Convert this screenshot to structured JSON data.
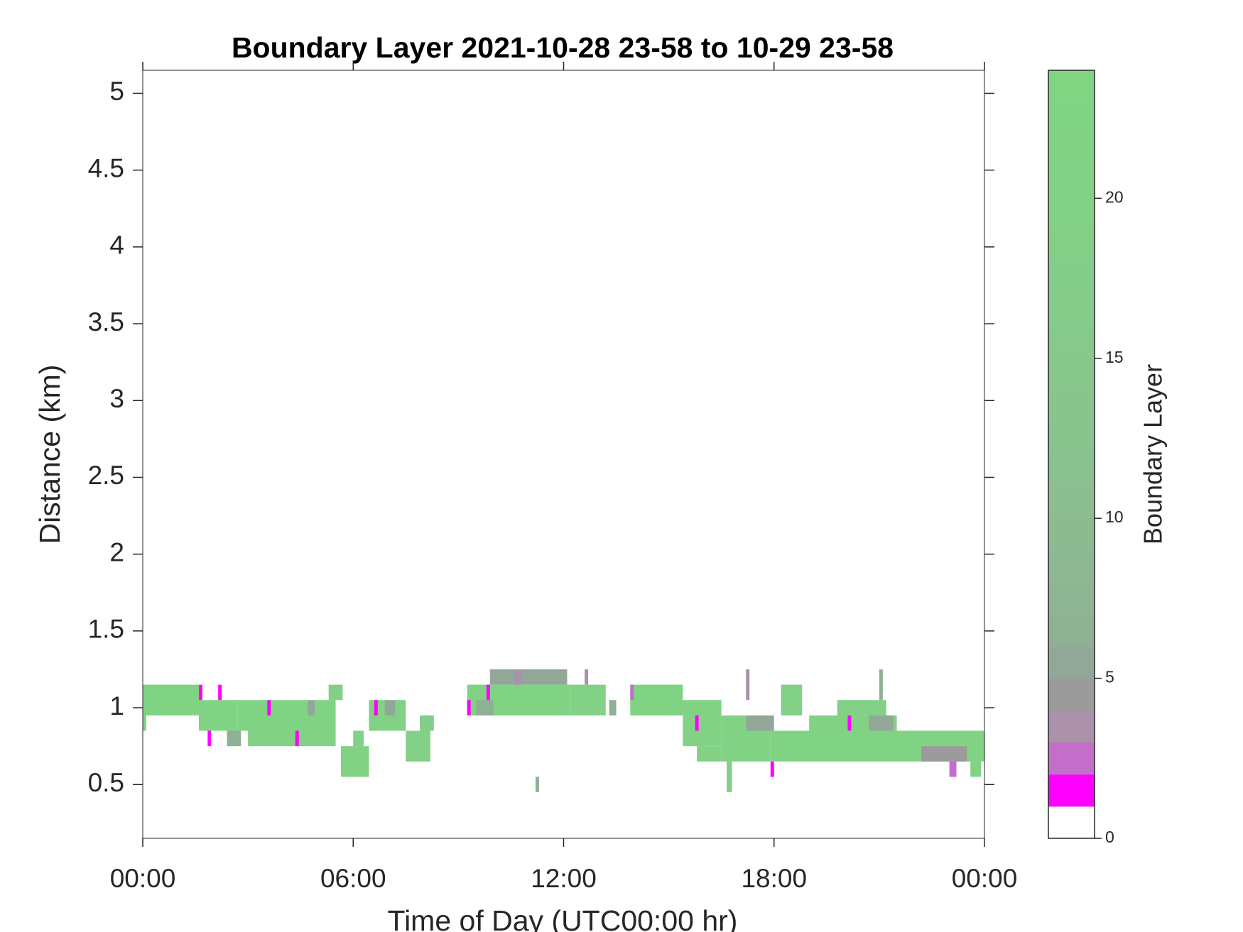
{
  "chart_data": {
    "type": "heatmap",
    "title": "Boundary Layer 2021-10-28 23-58 to 10-29 23-58",
    "x_label": "Time of Day (UTC00:00 hr)",
    "y_label": "Distance (km)",
    "xlim": [
      0,
      24
    ],
    "xticks": [
      {
        "value": 0,
        "label": "00:00"
      },
      {
        "value": 6,
        "label": "06:00"
      },
      {
        "value": 12,
        "label": "12:00"
      },
      {
        "value": 18,
        "label": "18:00"
      },
      {
        "value": 24,
        "label": "00:00"
      }
    ],
    "ylim": [
      0.15,
      5.15
    ],
    "yticks": [
      0.5,
      1,
      1.5,
      2,
      2.5,
      3,
      3.5,
      4,
      4.5,
      5
    ],
    "colorbar": {
      "label": "Boundary Layer",
      "lim": [
        0,
        24
      ],
      "ticks": [
        0,
        5,
        10,
        15,
        20
      ],
      "colors": [
        "#ffffff",
        "#ff00ff",
        "#c36fca",
        "#ab91a9",
        "#9a9b9a",
        "#93a799",
        "#8fb193",
        "#8eb593",
        "#8db892",
        "#8cbb91",
        "#8bbe90",
        "#8ac18f",
        "#89c38e",
        "#88c58d",
        "#87c78c",
        "#86c98b",
        "#85cb8a",
        "#84cd89",
        "#83cf88",
        "#83d087",
        "#82d186",
        "#82d285",
        "#81d384",
        "#80d482"
      ]
    },
    "cells": [
      [
        0,
        1.6,
        0.95,
        1.15,
        22
      ],
      [
        0,
        0.1,
        0.85,
        0.95,
        20
      ],
      [
        1.6,
        2.7,
        0.85,
        1.05,
        22
      ],
      [
        1.6,
        1.7,
        1.05,
        1.15,
        1
      ],
      [
        2.15,
        2.25,
        1.05,
        1.15,
        1
      ],
      [
        1.85,
        1.95,
        0.75,
        0.85,
        1
      ],
      [
        2.4,
        2.8,
        0.75,
        0.85,
        6
      ],
      [
        2.7,
        5.5,
        0.85,
        1.05,
        22
      ],
      [
        3.55,
        3.65,
        0.95,
        1.05,
        1
      ],
      [
        3.0,
        5.5,
        0.75,
        0.85,
        20
      ],
      [
        4.35,
        4.45,
        0.75,
        0.85,
        1
      ],
      [
        4.7,
        4.9,
        0.95,
        1.05,
        5
      ],
      [
        5.3,
        5.7,
        1.05,
        1.15,
        18
      ],
      [
        5.65,
        6.45,
        0.55,
        0.75,
        21
      ],
      [
        6.0,
        6.3,
        0.75,
        0.85,
        19
      ],
      [
        6.45,
        7.5,
        0.85,
        1.05,
        20
      ],
      [
        6.6,
        6.7,
        0.95,
        1.05,
        1
      ],
      [
        6.9,
        7.2,
        0.95,
        1.05,
        5
      ],
      [
        7.5,
        8.2,
        0.65,
        0.85,
        19
      ],
      [
        7.9,
        8.3,
        0.85,
        0.95,
        17
      ],
      [
        9.25,
        12.2,
        0.95,
        1.15,
        22
      ],
      [
        9.25,
        9.35,
        0.95,
        1.05,
        1
      ],
      [
        9.5,
        10.0,
        0.95,
        1.05,
        6
      ],
      [
        9.8,
        9.9,
        1.05,
        1.15,
        1
      ],
      [
        9.9,
        12.1,
        1.15,
        1.25,
        5
      ],
      [
        10.6,
        10.8,
        1.15,
        1.25,
        3
      ],
      [
        11.2,
        11.3,
        0.45,
        0.55,
        6
      ],
      [
        12.2,
        13.2,
        0.95,
        1.15,
        20
      ],
      [
        12.6,
        12.7,
        1.15,
        1.25,
        3
      ],
      [
        13.3,
        13.5,
        0.95,
        1.05,
        6
      ],
      [
        13.9,
        15.4,
        0.95,
        1.15,
        22
      ],
      [
        13.9,
        14.0,
        1.05,
        1.15,
        2
      ],
      [
        15.4,
        16.5,
        0.75,
        1.05,
        21
      ],
      [
        15.75,
        15.85,
        0.85,
        0.95,
        1
      ],
      [
        15.8,
        16.5,
        0.65,
        0.75,
        20
      ],
      [
        16.5,
        17.9,
        0.65,
        0.95,
        21
      ],
      [
        16.65,
        16.8,
        0.45,
        0.65,
        19
      ],
      [
        17.2,
        17.3,
        1.05,
        1.25,
        3
      ],
      [
        17.2,
        18.0,
        0.85,
        0.95,
        5
      ],
      [
        17.9,
        24,
        0.65,
        0.85,
        22
      ],
      [
        17.9,
        18.0,
        0.55,
        0.65,
        1
      ],
      [
        18.2,
        18.8,
        0.95,
        1.15,
        19
      ],
      [
        19.0,
        21.5,
        0.85,
        0.95,
        21
      ],
      [
        19.8,
        21.2,
        0.95,
        1.05,
        20
      ],
      [
        20.1,
        20.2,
        0.85,
        0.95,
        1
      ],
      [
        20.7,
        21.4,
        0.85,
        0.95,
        5
      ],
      [
        21.0,
        21.1,
        1.05,
        1.25,
        6
      ],
      [
        21.5,
        24,
        0.75,
        0.85,
        22
      ],
      [
        22.2,
        23.5,
        0.65,
        0.75,
        4
      ],
      [
        23.0,
        23.2,
        0.55,
        0.65,
        2
      ],
      [
        23.6,
        23.9,
        0.55,
        0.65,
        20
      ]
    ]
  }
}
